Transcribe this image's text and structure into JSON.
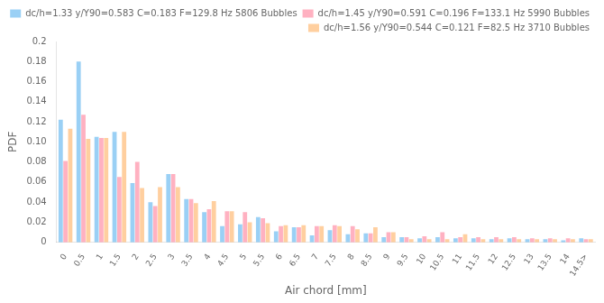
{
  "chart_data": {
    "type": "bar",
    "categories": [
      "0",
      "0.5",
      "1",
      "1.5",
      "2",
      "2.5",
      "3",
      "3.5",
      "4",
      "4.5",
      "5",
      "5.5",
      "6",
      "6.5",
      "7",
      "7.5",
      "8",
      "8.5",
      "9",
      "9.5",
      "10",
      "10.5",
      "11",
      "11.5",
      "12",
      "12.5",
      "13",
      "13.5",
      "14",
      "14.5>"
    ],
    "series": [
      {
        "name": "dc/h=1.33 y/Y90=0.583 C=0.183 F=129.8 Hz 5806 Bubbles",
        "values": [
          0.122,
          0.18,
          0.105,
          0.11,
          0.059,
          0.04,
          0.068,
          0.043,
          0.03,
          0.016,
          0.018,
          0.025,
          0.011,
          0.015,
          0.007,
          0.012,
          0.008,
          0.009,
          0.005,
          0.005,
          0.004,
          0.005,
          0.004,
          0.004,
          0.003,
          0.004,
          0.003,
          0.003,
          0.002,
          0.004
        ]
      },
      {
        "name": "dc/h=1.45 y/Y90=0.591 C=0.196 F=133.1 Hz 5990 Bubbles",
        "values": [
          0.081,
          0.127,
          0.104,
          0.065,
          0.08,
          0.036,
          0.068,
          0.043,
          0.033,
          0.031,
          0.03,
          0.024,
          0.016,
          0.015,
          0.016,
          0.017,
          0.016,
          0.009,
          0.01,
          0.005,
          0.006,
          0.01,
          0.005,
          0.005,
          0.005,
          0.005,
          0.004,
          0.004,
          0.004,
          0.003
        ]
      },
      {
        "name": "dc/h=1.56 y/Y90=0.544 C=0.121 F=82.5 Hz 3710 Bubbles",
        "values": [
          0.113,
          0.103,
          0.104,
          0.11,
          0.054,
          0.055,
          0.055,
          0.039,
          0.041,
          0.031,
          0.02,
          0.019,
          0.017,
          0.017,
          0.016,
          0.016,
          0.013,
          0.015,
          0.01,
          0.003,
          0.003,
          0.003,
          0.008,
          0.003,
          0.003,
          0.003,
          0.003,
          0.003,
          0.003,
          0.003
        ]
      }
    ],
    "xlabel": "Air chord [mm]",
    "ylabel": "PDF",
    "ylim": [
      0,
      0.2
    ],
    "yticks": [
      0,
      0.02,
      0.04,
      0.06,
      0.08,
      {
        "value": 0.1,
        "label": "0.10"
      },
      0.12,
      0.14,
      0.16,
      0.18,
      0.2
    ],
    "grid": false,
    "legend": "upper right"
  }
}
